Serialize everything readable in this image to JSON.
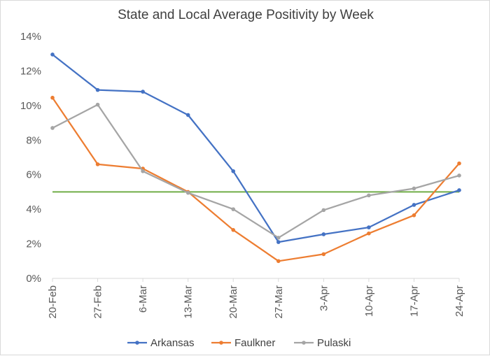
{
  "chart_data": {
    "type": "line",
    "title": "State and Local Average Positivity by Week",
    "xlabel": "",
    "ylabel": "",
    "categories": [
      "20-Feb",
      "27-Feb",
      "6-Mar",
      "13-Mar",
      "20-Mar",
      "27-Mar",
      "3-Apr",
      "10-Apr",
      "17-Apr",
      "24-Apr"
    ],
    "y_ticks": [
      "0%",
      "2%",
      "4%",
      "6%",
      "8%",
      "10%",
      "12%",
      "14%"
    ],
    "ylim": [
      0,
      14
    ],
    "grid": false,
    "legend_position": "bottom",
    "series": [
      {
        "name": "Arkansas",
        "color": "#4472c4",
        "values": [
          12.95,
          10.9,
          10.8,
          9.45,
          6.2,
          2.1,
          2.55,
          2.95,
          4.25,
          5.1
        ]
      },
      {
        "name": "Faulkner",
        "color": "#ed7d31",
        "values": [
          10.45,
          6.6,
          6.35,
          5.0,
          2.8,
          1.0,
          1.4,
          2.6,
          3.65,
          6.65
        ]
      },
      {
        "name": "Pulaski",
        "color": "#a5a5a5",
        "values": [
          8.7,
          10.05,
          6.2,
          4.95,
          4.0,
          2.35,
          3.95,
          4.8,
          5.2,
          5.95
        ]
      }
    ],
    "reference_line": {
      "value": 5,
      "color": "#70ad47"
    }
  }
}
